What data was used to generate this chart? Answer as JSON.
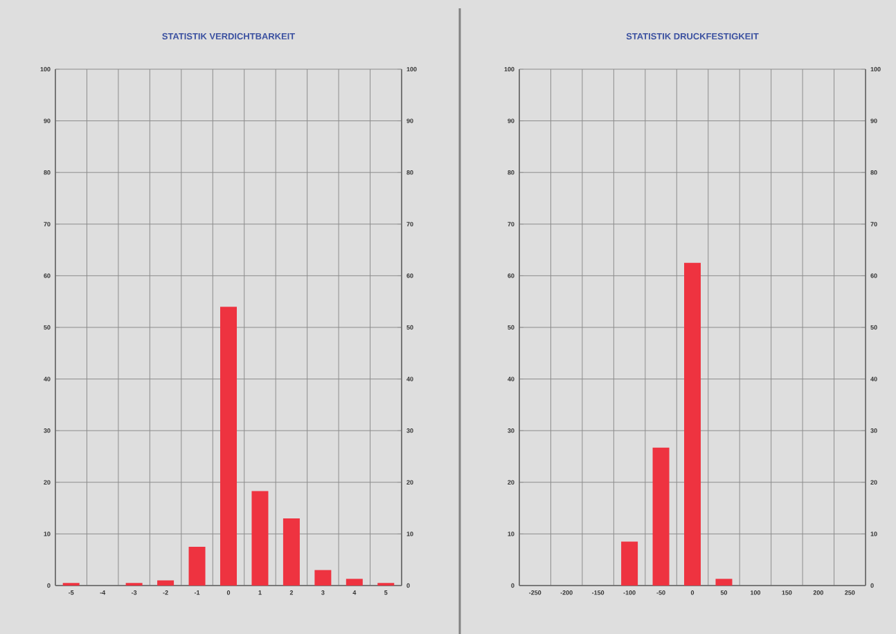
{
  "chart_data": [
    {
      "type": "bar",
      "title": "STATISTIK VERDICHTBARKEIT",
      "categories": [
        "-5",
        "-4",
        "-3",
        "-2",
        "-1",
        "0",
        "1",
        "2",
        "3",
        "4",
        "5"
      ],
      "values": [
        0.5,
        0,
        0.5,
        1,
        7.5,
        54,
        18.3,
        13,
        3,
        1.3,
        0.5
      ],
      "color": "#ee3340",
      "ylim": [
        0,
        100
      ],
      "yticks": [
        0,
        10,
        20,
        30,
        40,
        50,
        60,
        70,
        80,
        90,
        100
      ],
      "y2lim": [
        0,
        100
      ],
      "y2ticks": [
        0,
        10,
        20,
        30,
        40,
        50,
        60,
        70,
        80,
        90,
        100
      ],
      "grid": true
    },
    {
      "type": "bar",
      "title": "STATISTIK DRUCKFESTIGKEIT",
      "categories": [
        "-250",
        "-200",
        "-150",
        "-100",
        "-50",
        "0",
        "50",
        "100",
        "150",
        "200",
        "250"
      ],
      "values": [
        0,
        0,
        0,
        8.5,
        26.7,
        62.5,
        1.3,
        0,
        0,
        0,
        0
      ],
      "color": "#ee3340",
      "ylim": [
        0,
        100
      ],
      "yticks": [
        0,
        10,
        20,
        30,
        40,
        50,
        60,
        70,
        80,
        90,
        100
      ],
      "y2lim": [
        0,
        100
      ],
      "y2ticks": [
        0,
        10,
        20,
        30,
        40,
        50,
        60,
        70,
        80,
        90,
        100
      ],
      "grid": true
    }
  ]
}
